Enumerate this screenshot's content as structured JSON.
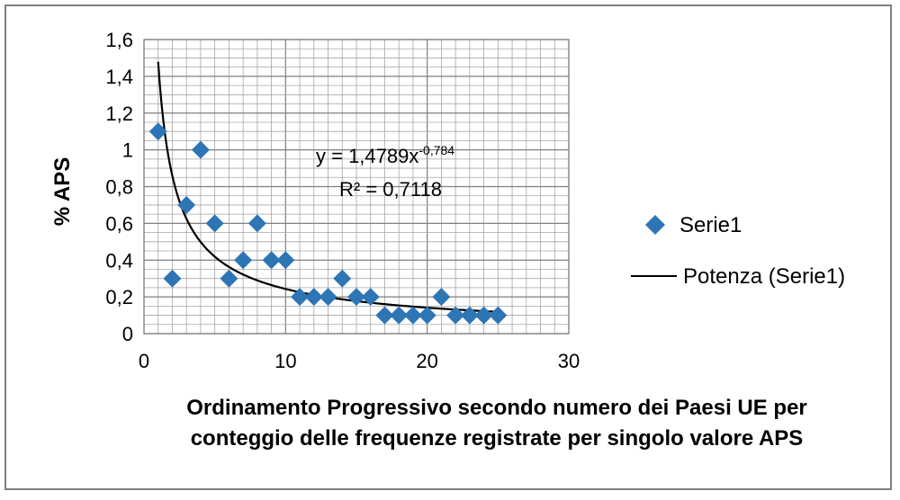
{
  "chart_data": {
    "type": "scatter",
    "title": "",
    "xlabel_lines": [
      "Ordinamento Progressivo secondo numero dei Paesi UE per",
      "conteggio delle frequenze registrate per singolo valore APS"
    ],
    "ylabel": "% APS",
    "xlim": [
      0,
      30
    ],
    "ylim": [
      0,
      1.6
    ],
    "x_major_ticks": [
      0,
      10,
      20,
      30
    ],
    "x_tick_labels": [
      "0",
      "10",
      "20",
      "30"
    ],
    "x_minor_step": 1,
    "y_ticks": [
      0,
      0.2,
      0.4,
      0.6,
      0.8,
      1.0,
      1.2,
      1.4,
      1.6
    ],
    "y_tick_labels": [
      "0",
      "0,2",
      "0,4",
      "0,6",
      "0,8",
      "1",
      "1,2",
      "1,4",
      "1,6"
    ],
    "grid": true,
    "legend_position": "right",
    "series": [
      {
        "name": "Serie1",
        "marker": "diamond",
        "color": "#2e75b6",
        "x": [
          1,
          2,
          3,
          4,
          5,
          6,
          7,
          8,
          9,
          10,
          11,
          12,
          13,
          14,
          15,
          16,
          17,
          18,
          19,
          20,
          21,
          22,
          23,
          24,
          25
        ],
        "y": [
          1.1,
          0.3,
          0.7,
          1.0,
          0.6,
          0.3,
          0.4,
          0.6,
          0.4,
          0.4,
          0.2,
          0.2,
          0.2,
          0.3,
          0.2,
          0.2,
          0.1,
          0.1,
          0.1,
          0.1,
          0.2,
          0.1,
          0.1,
          0.1,
          0.1
        ]
      }
    ],
    "trendline": {
      "name": "Potenza (Serie1)",
      "type": "power",
      "a": 1.4789,
      "b": -0.784,
      "x_range": [
        1,
        25
      ],
      "color": "#000000"
    },
    "equation": {
      "prefix": "y = 1,4789x",
      "exponent": "-0,784",
      "r2": "R² = 0,7118"
    }
  }
}
